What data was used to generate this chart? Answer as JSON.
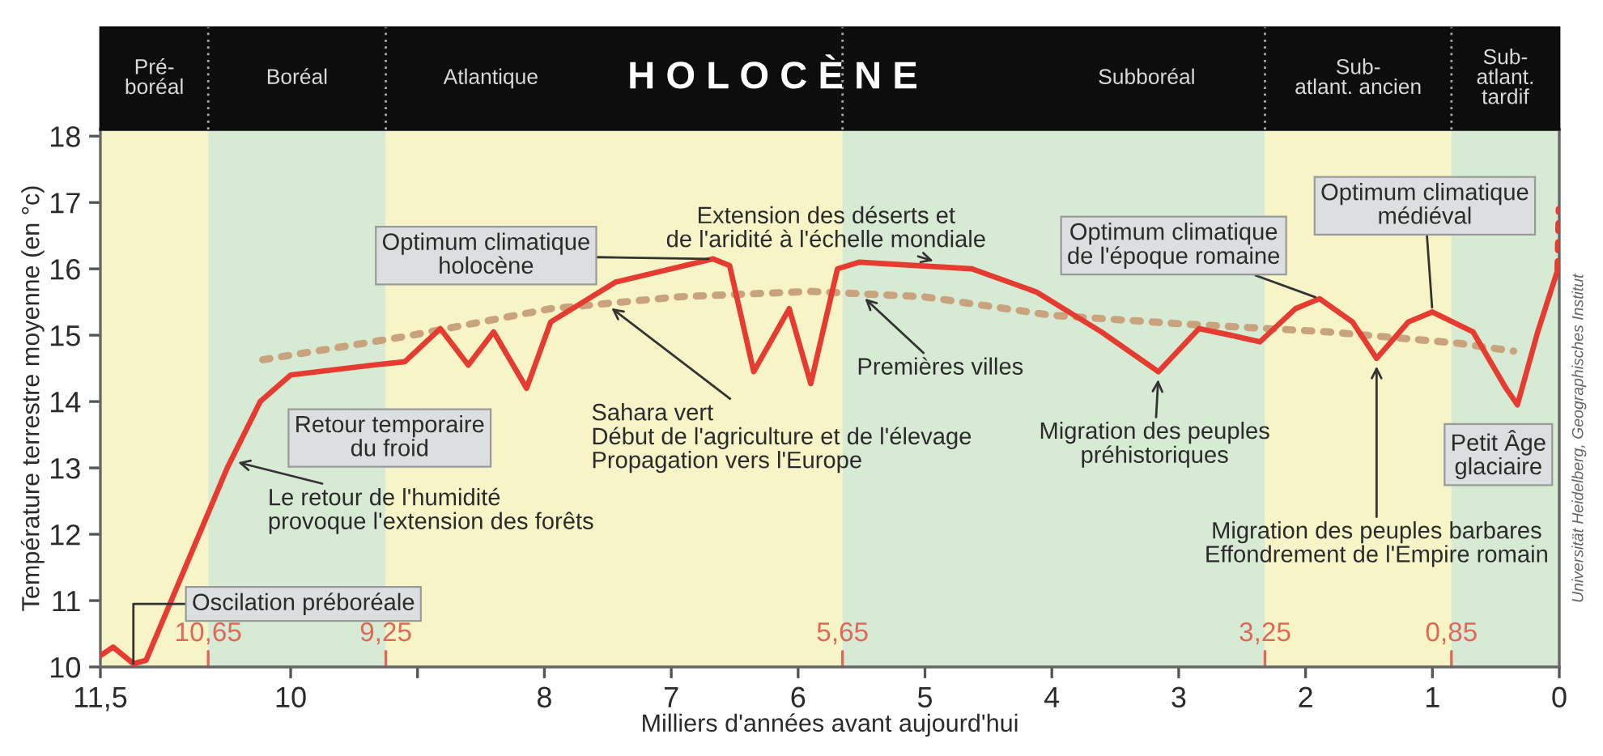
{
  "chart_data": {
    "type": "line",
    "title": "H O L O C È N E",
    "xlabel": "Milliers d'années avant aujourd'hui",
    "ylabel": "Température terrestre moyenne (en °c)",
    "xlim": [
      11.5,
      0
    ],
    "ylim": [
      10,
      18.1
    ],
    "xticks": [
      {
        "value": 11.5,
        "label": "11,5"
      },
      10,
      {
        "value": 9,
        "label": null
      },
      8,
      7,
      6,
      5,
      4,
      3,
      2,
      1,
      0
    ],
    "yticks": [
      10,
      11,
      12,
      13,
      14,
      15,
      16,
      17,
      18
    ],
    "grid": false,
    "legend": false,
    "series": [
      {
        "color": "#e53b30",
        "line_style": "solid",
        "x": [
          11.5,
          11.4,
          11.24,
          11.14,
          10.5,
          10.24,
          10.0,
          9.35,
          9.1,
          8.82,
          8.6,
          8.4,
          8.14,
          7.95,
          7.44,
          6.67,
          6.54,
          6.35,
          6.07,
          5.9,
          5.69,
          5.52,
          4.63,
          4.12,
          3.61,
          3.16,
          2.84,
          2.59,
          2.36,
          2.08,
          1.89,
          1.63,
          1.44,
          1.19,
          1.0,
          0.68,
          0.42,
          0.33,
          0.17,
          0.01
        ],
        "values": [
          10.17,
          10.3,
          10.05,
          10.1,
          13.0,
          14.0,
          14.4,
          14.55,
          14.6,
          15.1,
          14.55,
          15.05,
          14.2,
          15.2,
          15.8,
          16.15,
          16.05,
          14.45,
          15.4,
          14.27,
          16.0,
          16.1,
          16.0,
          15.65,
          15.05,
          14.45,
          15.1,
          15.0,
          14.9,
          15.4,
          15.55,
          15.2,
          14.65,
          15.2,
          15.35,
          15.05,
          14.2,
          13.95,
          15.05,
          16.0
        ]
      },
      {
        "color": "#e53b30",
        "line_style": "dotted",
        "x": [
          0.01,
          0.0
        ],
        "values": [
          16.0,
          16.9
        ]
      },
      {
        "color": "#c9a27e",
        "line_style": "dotted",
        "x": [
          10.22,
          9.1,
          7.95,
          6.93,
          5.9,
          5.01,
          4.0,
          2.97,
          1.82,
          0.8,
          0.36
        ],
        "values": [
          14.63,
          14.98,
          15.4,
          15.58,
          15.66,
          15.58,
          15.3,
          15.17,
          15.05,
          14.88,
          14.76
        ]
      }
    ],
    "bands": [
      {
        "axis": "x",
        "from": 11.5,
        "to": 10.65,
        "label": "Pré-\nboréal",
        "color": "#f7f4c8"
      },
      {
        "axis": "x",
        "from": 10.65,
        "to": 9.25,
        "label": "Boréal",
        "color": "#d7ead3"
      },
      {
        "axis": "x",
        "from": 9.25,
        "to": 5.65,
        "label": "Atlantique",
        "color": "#f7f4c8"
      },
      {
        "axis": "x",
        "from": 5.65,
        "to": 2.32,
        "label": "Subboréal",
        "color": "#d7ead3"
      },
      {
        "axis": "x",
        "from": 2.32,
        "to": 0.85,
        "label": "Sub-\natlant. ancien",
        "color": "#f7f4c8"
      },
      {
        "axis": "x",
        "from": 0.85,
        "to": 0,
        "label": "Sub-\natlant.\ntardif",
        "color": "#d7ead3"
      }
    ],
    "annotations": [
      {
        "text": "Oscilation préboréale",
        "x": 11.24,
        "y": 10.05
      },
      {
        "text": "Le retour de l'humidité\nprovoque l'extension des forêts",
        "x": 10.45,
        "y": 13.1
      },
      {
        "text": "Retour temporaire\ndu froid",
        "x": 10.24,
        "y": 14.0
      },
      {
        "text": "Optimum climatique\nholocène",
        "x": 6.67,
        "y": 16.15
      },
      {
        "text": "Extension des déserts et\nde l'aridité à l'échelle mondiale",
        "x": 4.9,
        "y": 16.1
      },
      {
        "text": "Premières villes",
        "x": 5.5,
        "y": 15.6
      },
      {
        "text": "Sahara vert\nDébut de l'agriculture et de l'élevage\nPropagation vers l'Europe",
        "x": 7.5,
        "y": 15.45
      },
      {
        "text": "Optimum climatique\nde l'époque romaine",
        "x": 1.89,
        "y": 15.55
      },
      {
        "text": "Optimum climatique\nmédiéval",
        "x": 1.0,
        "y": 15.35
      },
      {
        "text": "Migration des peuples\npréhistoriques",
        "x": 3.16,
        "y": 14.4
      },
      {
        "text": "Migration des peuples barbares\nEffondrement de l'Empire romain",
        "x": 1.44,
        "y": 14.6
      },
      {
        "text": "Petit Âge\nglaciaire",
        "x": 0.33,
        "y": 13.95
      },
      {
        "text": "10,65",
        "x": 10.65,
        "y": 10
      },
      {
        "text": "9,25",
        "x": 9.25,
        "y": 10
      },
      {
        "text": "5,65",
        "x": 5.65,
        "y": 10
      },
      {
        "text": "3,25",
        "x": 2.32,
        "y": 10
      },
      {
        "text": "0,85",
        "x": 0.85,
        "y": 10
      },
      "Universität Heidelberg, Geographisches Institut"
    ]
  }
}
